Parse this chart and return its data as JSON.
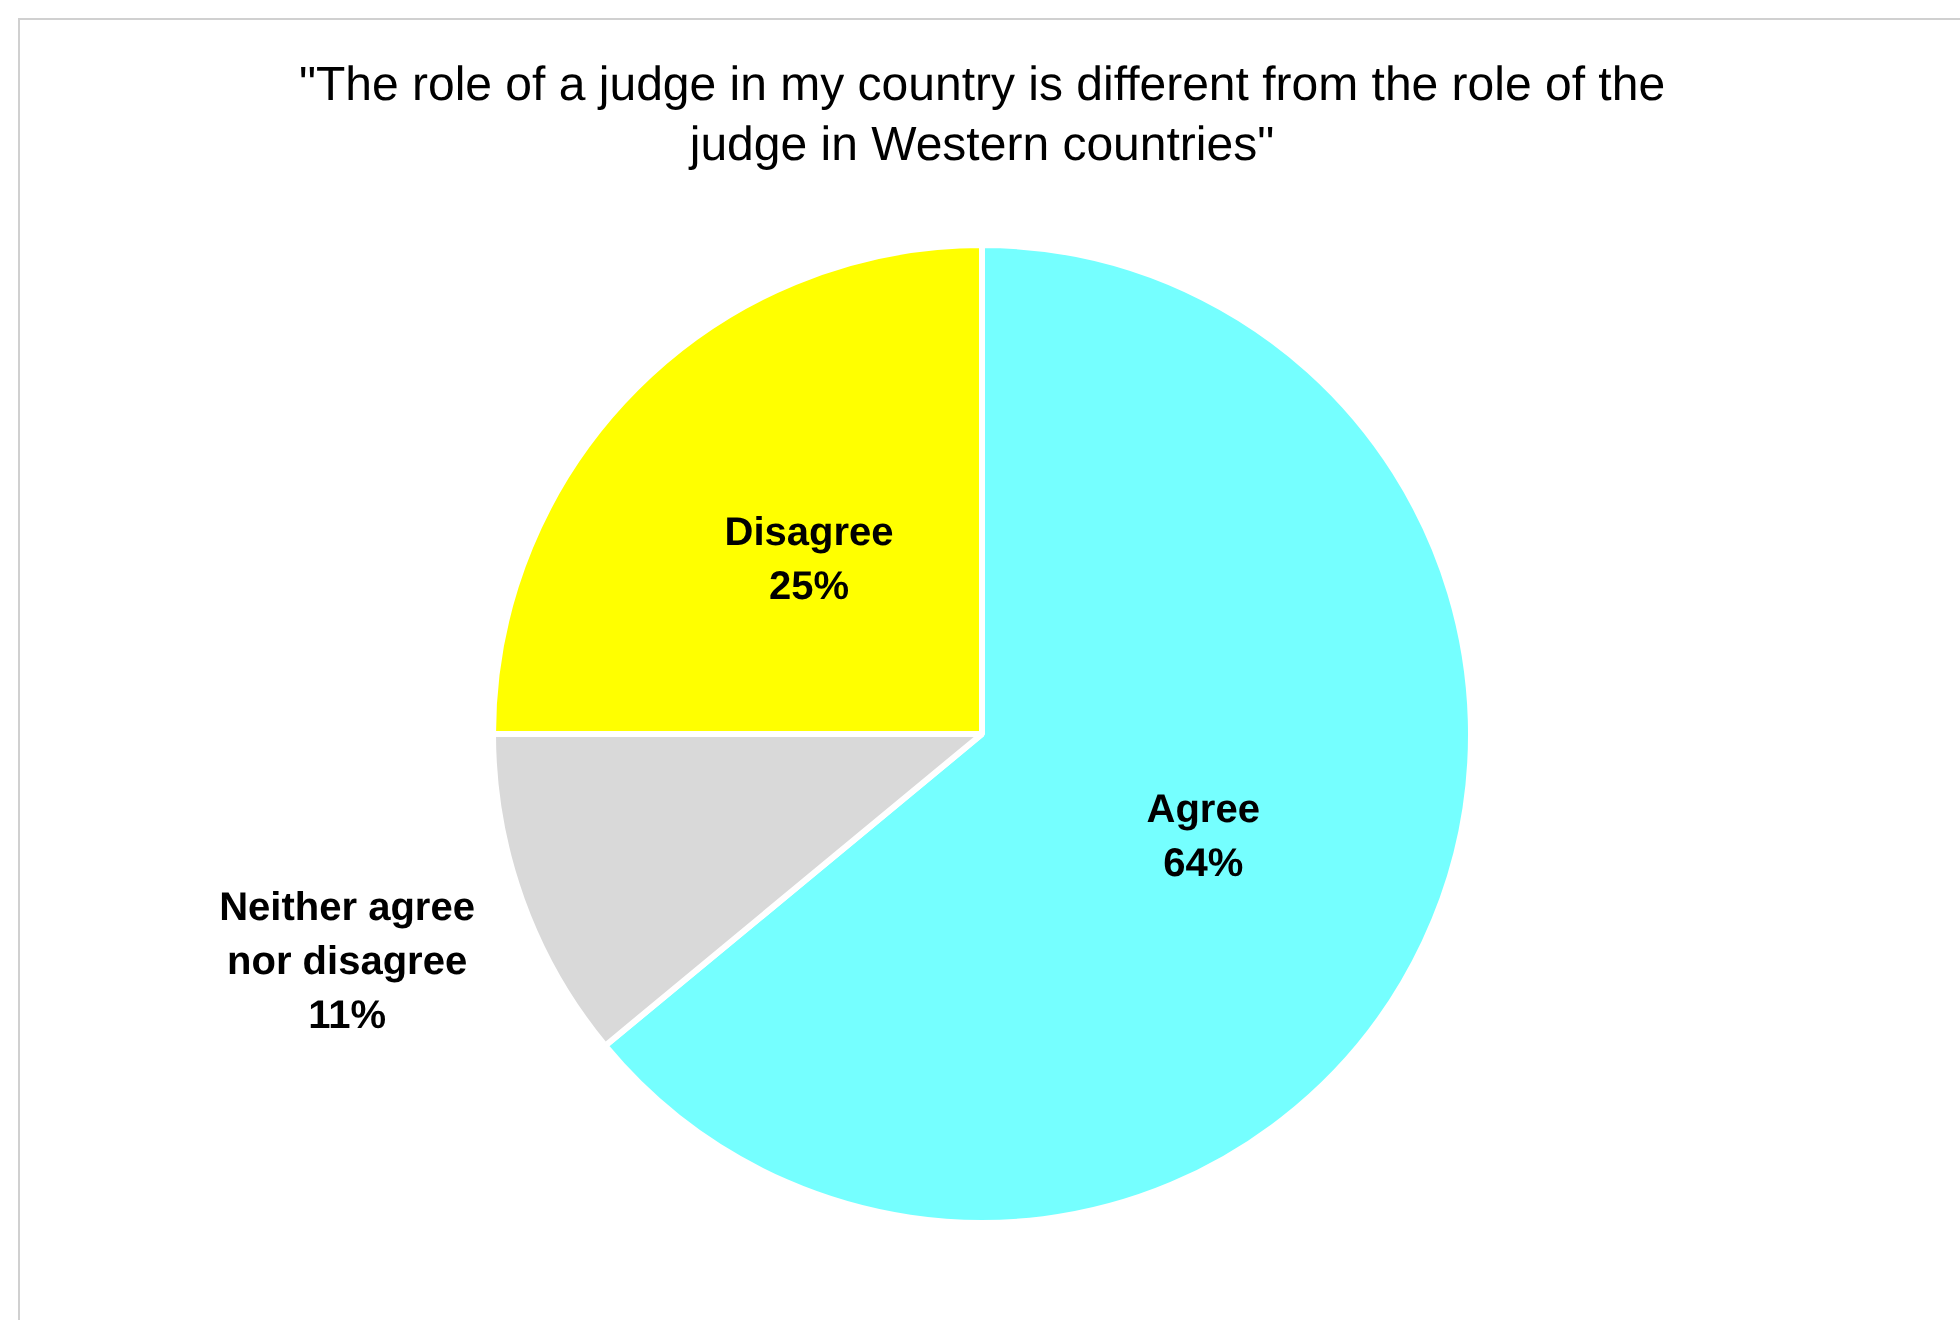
{
  "chart_data": {
    "type": "pie",
    "title": "\"The role of a judge in my country is different from the role of the judge in Western countries\"",
    "categories": [
      "Agree",
      "Neither agree nor disagree",
      "Disagree"
    ],
    "values": [
      64,
      11,
      25
    ],
    "colors": [
      "#75ffff",
      "#d9d9d9",
      "#ffff00"
    ],
    "value_labels": [
      "64%",
      "11%",
      "25%"
    ],
    "legend": false
  }
}
